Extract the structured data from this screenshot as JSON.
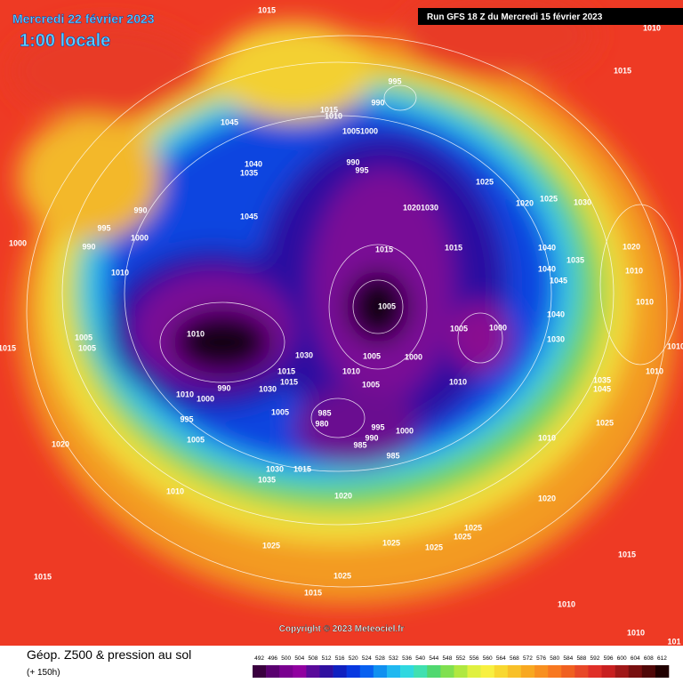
{
  "header": {
    "date": "Mercredi 22 février 2023",
    "time": "1:00 locale",
    "run": "Run GFS 18 Z du Mercredi 15 février 2023"
  },
  "copyright": "Copyright © 2023 Meteociel.fr",
  "footer": {
    "title": "Géop. Z500 & pression au sol",
    "lead": "(+ 150h)"
  },
  "colorbar": {
    "labels": [
      "492",
      "496",
      "500",
      "504",
      "508",
      "512",
      "516",
      "520",
      "524",
      "528",
      "532",
      "536",
      "540",
      "544",
      "548",
      "552",
      "556",
      "560",
      "564",
      "568",
      "572",
      "576",
      "580",
      "584",
      "588",
      "592",
      "596",
      "600",
      "604",
      "608",
      "612"
    ],
    "colors": [
      "#3a003f",
      "#5a0070",
      "#7a0090",
      "#9000a0",
      "#5a0a9a",
      "#3010a0",
      "#1020c0",
      "#0838e0",
      "#0860f0",
      "#1090f0",
      "#20b8f0",
      "#30d8e0",
      "#40e0b0",
      "#50d870",
      "#80e050",
      "#b0e840",
      "#e0f040",
      "#f8f040",
      "#f8d830",
      "#f8c028",
      "#f8a820",
      "#f89020",
      "#f87820",
      "#f06020",
      "#e84828",
      "#e03028",
      "#c82020",
      "#a01818",
      "#781010",
      "#500808",
      "#200000"
    ]
  },
  "isobar_labels": [
    1015,
    1010,
    1015,
    995,
    990,
    1015,
    1010,
    1045,
    1005,
    1000,
    1040,
    990,
    995,
    1035,
    1025,
    1025,
    1030,
    1020,
    990,
    1045,
    1020,
    1030,
    995,
    1000,
    990,
    1000,
    1015,
    1015,
    1040,
    1020,
    1035,
    1010,
    1040,
    1010,
    1045,
    1005,
    1010,
    1040,
    1010,
    1005,
    1000,
    1005,
    1030,
    1005,
    1030,
    1005,
    1000,
    1015,
    1010,
    1015,
    1010,
    1010,
    1015,
    1005,
    1010,
    1035,
    990,
    1030,
    1045,
    1010,
    1000,
    1005,
    985,
    980,
    995,
    995,
    1000,
    1025,
    1005,
    990,
    1010,
    985,
    1020,
    985,
    1030,
    1015,
    1035,
    1010,
    1020,
    1020,
    1025,
    1025,
    1025,
    1025,
    1025,
    1015,
    1025,
    1015,
    1015,
    1010,
    1010,
    101
  ]
}
